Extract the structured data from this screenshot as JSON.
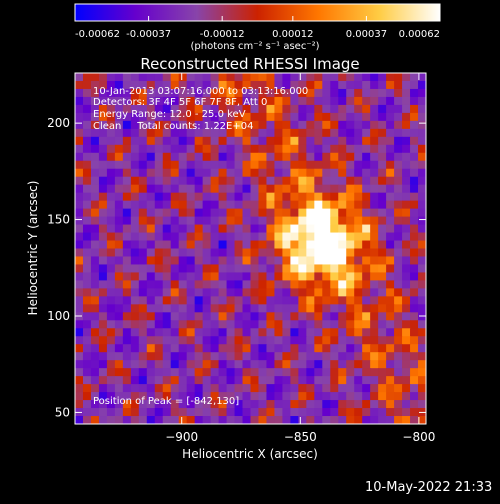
{
  "colorbar": {
    "tick_labels": [
      "-0.00062",
      "-0.00037",
      "-0.00012",
      "0.00012",
      "0.00037",
      "0.00062"
    ],
    "unit_label": "(photons cm⁻² s⁻¹ asec⁻²)",
    "range": [
      -0.00062,
      0.00062
    ],
    "colors": [
      "#0000ff",
      "#6600cc",
      "#8844aa",
      "#cc2200",
      "#ff7700",
      "#ffcc44",
      "#ffffff"
    ]
  },
  "chart_data": {
    "type": "heatmap",
    "title": "Reconstructed RHESSI Image",
    "xlabel": "Heliocentric X (arcsec)",
    "ylabel": "Heliocentric Y (arcsec)",
    "xlim": [
      -945,
      -797
    ],
    "ylim": [
      44,
      226
    ],
    "x_ticks": [
      -900,
      -850,
      -800
    ],
    "x_tick_labels": [
      "−900",
      "−850",
      "−800"
    ],
    "y_ticks": [
      50,
      100,
      150,
      200
    ],
    "y_tick_labels": [
      "50",
      "100",
      "150",
      "200"
    ],
    "peak": {
      "x": -842,
      "y": 130,
      "value": 0.00062
    },
    "info_lines": [
      "10-Jan-2013 03:07:16.000 to 03:13:16.000",
      "Detectors: 3F 4F 5F 6F 7F 8F, Att 0",
      "Energy Range: 12.0 - 25.0 keV",
      "Clean     Total counts: 1.22E+04"
    ],
    "peak_label": "Position of Peak = [-842,130]",
    "grid": false
  },
  "footer": {
    "timestamp": "10-May-2022 21:33"
  }
}
